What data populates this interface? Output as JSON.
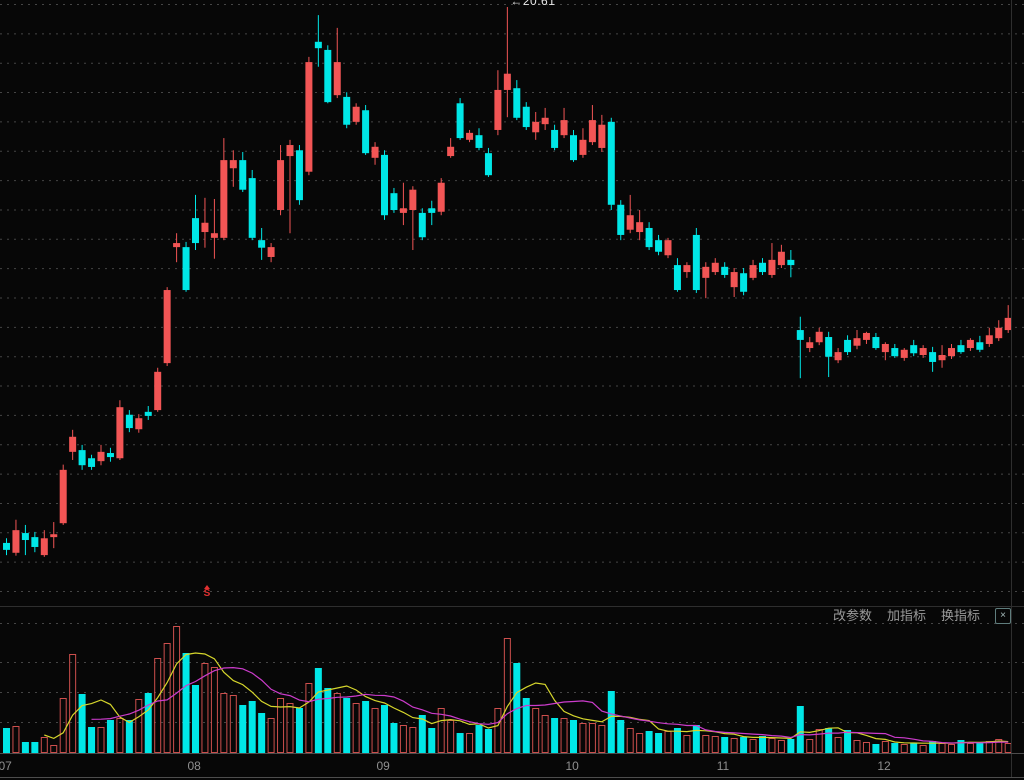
{
  "toolbar": {
    "buttons": [
      {
        "id": "change-params",
        "label": "改参数"
      },
      {
        "id": "add-indicator",
        "label": "加指标"
      },
      {
        "id": "switch-indicator",
        "label": "换指标"
      }
    ],
    "close_label": "×"
  },
  "annotation": {
    "text": "←20.61",
    "value": 20.61,
    "day": 53
  },
  "signal_marker": {
    "text": "S",
    "day": 21
  },
  "x_axis": {
    "months": [
      {
        "label": "07",
        "day": 0
      },
      {
        "label": "08",
        "day": 20
      },
      {
        "label": "09",
        "day": 40
      },
      {
        "label": "10",
        "day": 60
      },
      {
        "label": "11",
        "day": 76
      },
      {
        "label": "12",
        "day": 93
      }
    ]
  },
  "colors": {
    "background": "#070707",
    "up": "#f25555",
    "down": "#00e7e7",
    "volume_up_outline": "#cd4f4d",
    "ma_fast": "#d6d62c",
    "ma_slow": "#cc3ccc",
    "grid": "#454545",
    "border": "#2e2e2e",
    "axis_line": "#4d4d4d",
    "month_label": "#8f8f8f",
    "toolbar_text": "#9a9a9a"
  },
  "chart_data": {
    "type": "candlestick",
    "title": "",
    "xlabel": "",
    "ylabel": "",
    "legend": [],
    "grid": "dotted-horizontal",
    "y_axis": {
      "labels_visible": false,
      "annotated_high": 20.61
    },
    "x_axis_tick_labels": [
      "07",
      "08",
      "09",
      "10",
      "11",
      "12"
    ],
    "columns": [
      "open",
      "high",
      "low",
      "close",
      "volume"
    ],
    "volume_ma": [
      {
        "name": "MA5",
        "period": 5,
        "color": "#d6d62c"
      },
      {
        "name": "MA10",
        "period": 10,
        "color": "#cc3ccc"
      }
    ],
    "days": [
      [
        11.37,
        11.45,
        11.16,
        11.25,
        25
      ],
      [
        11.2,
        11.77,
        11.15,
        11.59,
        27
      ],
      [
        11.54,
        11.68,
        11.16,
        11.42,
        11
      ],
      [
        11.47,
        11.56,
        11.21,
        11.3,
        11
      ],
      [
        11.16,
        11.59,
        11.13,
        11.45,
        16
      ],
      [
        11.47,
        11.73,
        11.28,
        11.52,
        8
      ],
      [
        11.71,
        12.72,
        11.68,
        12.63,
        55
      ],
      [
        12.94,
        13.32,
        12.8,
        13.2,
        99
      ],
      [
        12.97,
        13.06,
        12.63,
        12.71,
        59
      ],
      [
        12.83,
        12.89,
        12.63,
        12.68,
        26
      ],
      [
        12.78,
        13.06,
        12.71,
        12.94,
        26
      ],
      [
        12.92,
        13.01,
        12.77,
        12.85,
        33
      ],
      [
        12.83,
        13.83,
        12.8,
        13.71,
        35
      ],
      [
        13.58,
        13.66,
        13.28,
        13.35,
        33
      ],
      [
        13.33,
        13.59,
        13.27,
        13.52,
        54
      ],
      [
        13.63,
        13.73,
        13.49,
        13.56,
        60
      ],
      [
        13.66,
        14.39,
        13.63,
        14.32,
        95
      ],
      [
        14.47,
        15.78,
        14.42,
        15.73,
        110
      ],
      [
        16.47,
        16.71,
        16.21,
        16.54,
        127
      ],
      [
        16.47,
        16.56,
        15.7,
        15.73,
        100
      ],
      [
        16.97,
        17.37,
        16.42,
        16.54,
        68
      ],
      [
        16.73,
        17.32,
        16.46,
        16.89,
        90
      ],
      [
        16.63,
        17.3,
        16.27,
        16.71,
        86
      ],
      [
        16.63,
        18.35,
        16.59,
        17.97,
        60
      ],
      [
        17.83,
        18.14,
        17.51,
        17.97,
        58
      ],
      [
        17.97,
        18.11,
        17.42,
        17.46,
        48
      ],
      [
        17.66,
        17.8,
        16.59,
        16.63,
        52
      ],
      [
        16.59,
        16.8,
        16.25,
        16.46,
        40
      ],
      [
        16.3,
        16.54,
        16.21,
        16.47,
        35
      ],
      [
        17.11,
        18.23,
        17.02,
        17.97,
        55
      ],
      [
        18.04,
        18.32,
        16.71,
        18.23,
        50
      ],
      [
        18.14,
        18.23,
        17.2,
        17.28,
        45
      ],
      [
        17.77,
        19.75,
        17.71,
        19.66,
        70
      ],
      [
        20.01,
        20.47,
        19.58,
        19.9,
        85
      ],
      [
        19.87,
        19.95,
        18.95,
        18.97,
        65
      ],
      [
        19.09,
        20.25,
        19.04,
        19.66,
        60
      ],
      [
        19.06,
        19.14,
        18.52,
        18.58,
        55
      ],
      [
        18.63,
        18.95,
        18.58,
        18.89,
        50
      ],
      [
        18.83,
        18.92,
        18.06,
        18.09,
        52
      ],
      [
        18.01,
        18.28,
        17.89,
        18.2,
        45
      ],
      [
        18.06,
        18.14,
        16.94,
        17.02,
        48
      ],
      [
        17.4,
        17.49,
        17.06,
        17.11,
        30
      ],
      [
        17.06,
        17.58,
        16.85,
        17.14,
        28
      ],
      [
        17.11,
        17.52,
        16.42,
        17.46,
        26
      ],
      [
        17.06,
        17.14,
        16.59,
        16.64,
        38
      ],
      [
        17.14,
        17.27,
        16.85,
        17.06,
        25
      ],
      [
        17.08,
        17.66,
        17.02,
        17.58,
        45
      ],
      [
        18.04,
        18.35,
        18.01,
        18.2,
        33
      ],
      [
        18.95,
        19.04,
        18.32,
        18.35,
        20
      ],
      [
        18.32,
        18.49,
        18.28,
        18.44,
        20
      ],
      [
        18.4,
        18.52,
        18.14,
        18.18,
        28
      ],
      [
        18.09,
        18.18,
        17.68,
        17.71,
        24
      ],
      [
        18.49,
        19.52,
        18.4,
        19.18,
        45
      ],
      [
        19.18,
        20.61,
        18.71,
        19.46,
        115
      ],
      [
        19.21,
        19.35,
        18.66,
        18.7,
        90
      ],
      [
        18.89,
        18.97,
        18.49,
        18.54,
        55
      ],
      [
        18.45,
        18.8,
        18.32,
        18.63,
        45
      ],
      [
        18.59,
        18.87,
        18.49,
        18.7,
        38
      ],
      [
        18.49,
        18.58,
        18.14,
        18.18,
        35
      ],
      [
        18.4,
        18.87,
        18.35,
        18.66,
        35
      ],
      [
        18.4,
        18.49,
        17.94,
        17.97,
        33
      ],
      [
        18.06,
        18.52,
        18.01,
        18.32,
        30
      ],
      [
        18.28,
        18.92,
        18.23,
        18.66,
        30
      ],
      [
        18.18,
        18.75,
        18.11,
        18.58,
        28
      ],
      [
        18.63,
        18.7,
        17.11,
        17.2,
        62
      ],
      [
        17.2,
        17.28,
        16.59,
        16.68,
        33
      ],
      [
        16.77,
        17.37,
        16.71,
        17.02,
        25
      ],
      [
        16.73,
        17.11,
        16.59,
        16.9,
        20
      ],
      [
        16.8,
        16.9,
        16.42,
        16.47,
        22
      ],
      [
        16.59,
        16.68,
        16.33,
        16.39,
        20
      ],
      [
        16.33,
        16.63,
        16.28,
        16.59,
        22
      ],
      [
        16.16,
        16.28,
        15.7,
        15.73,
        25
      ],
      [
        16.04,
        16.21,
        15.94,
        16.16,
        18
      ],
      [
        16.68,
        16.8,
        15.68,
        15.73,
        28
      ],
      [
        15.94,
        16.21,
        15.59,
        16.13,
        18
      ],
      [
        16.04,
        16.28,
        15.99,
        16.2,
        17
      ],
      [
        16.13,
        16.21,
        15.94,
        15.99,
        16
      ],
      [
        15.78,
        16.11,
        15.61,
        16.04,
        15
      ],
      [
        16.02,
        16.11,
        15.64,
        15.7,
        16
      ],
      [
        15.94,
        16.25,
        15.9,
        16.16,
        14
      ],
      [
        16.2,
        16.28,
        15.99,
        16.04,
        17
      ],
      [
        15.99,
        16.54,
        15.94,
        16.25,
        15
      ],
      [
        16.16,
        16.51,
        16.11,
        16.39,
        13
      ],
      [
        16.25,
        16.42,
        15.95,
        16.16,
        14
      ],
      [
        15.04,
        15.27,
        14.21,
        14.87,
        47
      ],
      [
        14.73,
        14.92,
        14.66,
        14.83,
        14
      ],
      [
        14.83,
        15.08,
        14.78,
        15.01,
        24
      ],
      [
        14.92,
        15.01,
        14.23,
        14.58,
        25
      ],
      [
        14.52,
        14.73,
        14.47,
        14.66,
        16
      ],
      [
        14.87,
        14.95,
        14.61,
        14.66,
        23
      ],
      [
        14.77,
        15.04,
        14.71,
        14.9,
        13
      ],
      [
        14.87,
        15.01,
        14.8,
        14.99,
        11
      ],
      [
        14.92,
        14.99,
        14.7,
        14.73,
        9
      ],
      [
        14.66,
        14.83,
        14.52,
        14.8,
        12
      ],
      [
        14.73,
        14.8,
        14.56,
        14.59,
        10
      ],
      [
        14.56,
        14.73,
        14.51,
        14.7,
        9
      ],
      [
        14.78,
        14.87,
        14.59,
        14.64,
        10
      ],
      [
        14.61,
        14.78,
        14.56,
        14.73,
        8
      ],
      [
        14.66,
        14.75,
        14.32,
        14.49,
        12
      ],
      [
        14.52,
        14.78,
        14.39,
        14.61,
        10
      ],
      [
        14.59,
        14.8,
        14.54,
        14.73,
        9
      ],
      [
        14.78,
        14.87,
        14.63,
        14.66,
        13
      ],
      [
        14.73,
        14.9,
        14.68,
        14.87,
        10
      ],
      [
        14.83,
        14.94,
        14.66,
        14.7,
        11
      ],
      [
        14.8,
        15.08,
        14.75,
        14.95,
        12
      ],
      [
        14.9,
        15.21,
        14.85,
        15.08,
        14
      ],
      [
        15.04,
        15.47,
        14.99,
        15.25,
        10
      ]
    ]
  }
}
